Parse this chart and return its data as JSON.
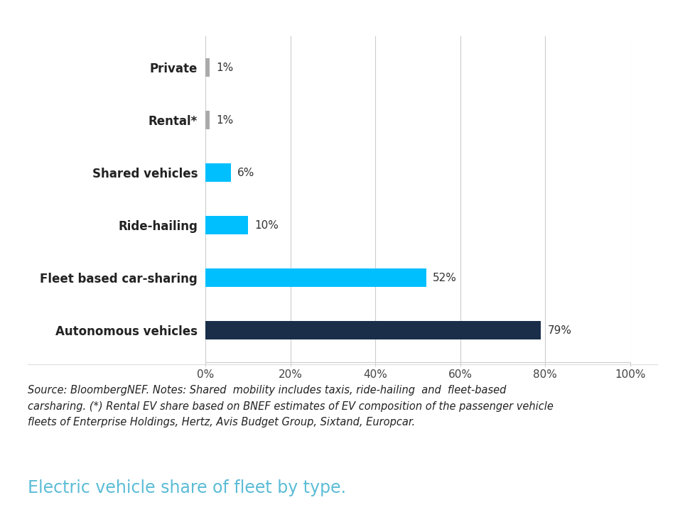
{
  "categories": [
    "Autonomous vehicles",
    "Fleet based car-sharing",
    "Ride-hailing",
    "Shared vehicles",
    "Rental*",
    "Private"
  ],
  "values": [
    79,
    52,
    10,
    6,
    1,
    1
  ],
  "bar_colors": [
    "#1a2e4a",
    "#00bfff",
    "#00bfff",
    "#00bfff",
    "#aaaaaa",
    "#aaaaaa"
  ],
  "labels": [
    "79%",
    "52%",
    "10%",
    "6%",
    "1%",
    "1%"
  ],
  "xlim": [
    0,
    100
  ],
  "xticks": [
    0,
    20,
    40,
    60,
    80,
    100
  ],
  "xticklabels": [
    "0%",
    "20%",
    "40%",
    "60%",
    "80%",
    "100%"
  ],
  "source_text": "Source: BloombergNEF. Notes: Shared  mobility includes taxis, ride-hailing  and  fleet-based\ncarsharing. (*) Rental EV share based on BNEF estimates of EV composition of the passenger vehicle\nfleets of Enterprise Holdings, Hertz, Avis Budget Group, Sixtand, Europcar.",
  "caption": "Electric vehicle share of fleet by type.",
  "background_color": "#ffffff",
  "bar_height": 0.35,
  "label_fontsize": 11,
  "tick_fontsize": 11,
  "ylabel_fontsize": 12,
  "caption_fontsize": 17,
  "source_fontsize": 10.5
}
